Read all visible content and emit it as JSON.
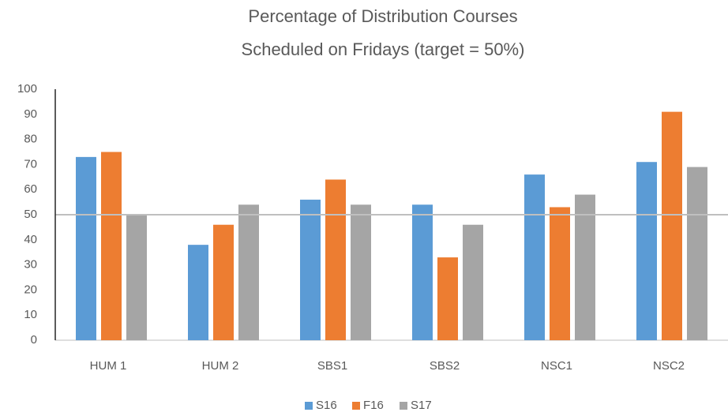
{
  "chart_data": {
    "type": "bar",
    "title": [
      "Percentage of Distribution Courses",
      "Scheduled on Fridays (target = 50%)"
    ],
    "categories": [
      "HUM 1",
      "HUM 2",
      "SBS1",
      "SBS2",
      "NSC1",
      "NSC2"
    ],
    "series": [
      {
        "name": "S16",
        "color": "#5b9bd5",
        "values": [
          73,
          38,
          56,
          54,
          66,
          71
        ]
      },
      {
        "name": "F16",
        "color": "#ed7d31",
        "values": [
          75,
          46,
          64,
          33,
          53,
          91
        ]
      },
      {
        "name": "S17",
        "color": "#a5a5a5",
        "values": [
          50,
          54,
          54,
          46,
          58,
          69
        ]
      }
    ],
    "target": 50,
    "ylim": [
      0,
      100
    ],
    "yticks": [
      0,
      10,
      20,
      30,
      40,
      50,
      60,
      70,
      80,
      90,
      100
    ],
    "grid": false,
    "legend": "bottom"
  }
}
